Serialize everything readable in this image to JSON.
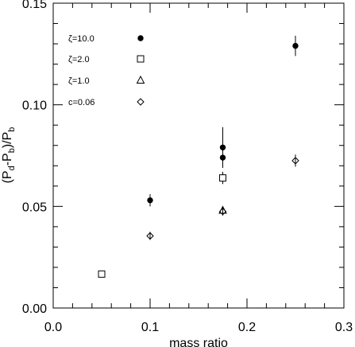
{
  "chart_data": {
    "type": "scatter",
    "xlabel": "mass ratio",
    "ylabel": "(P_d - P_b)/P_b",
    "xlim": [
      0.0,
      0.3
    ],
    "ylim": [
      0.0,
      0.15
    ],
    "x_ticks": [
      "0.0",
      "0.1",
      "0.2",
      "0.3"
    ],
    "y_ticks": [
      "0.00",
      "0.05",
      "0.10",
      "0.15"
    ],
    "grid": false,
    "legend_position": "top-left",
    "series": [
      {
        "name": "ζ=10.0",
        "marker": "filled-circle",
        "points": [
          {
            "x": 0.1,
            "y": 0.053,
            "err": 0.003
          },
          {
            "x": 0.175,
            "y": 0.079,
            "err": 0.01
          },
          {
            "x": 0.175,
            "y": 0.074,
            "err": 0.005
          },
          {
            "x": 0.25,
            "y": 0.129,
            "err": 0.005
          }
        ]
      },
      {
        "name": "ζ=2.0",
        "marker": "open-square",
        "points": [
          {
            "x": 0.05,
            "y": 0.0167,
            "err": 0
          },
          {
            "x": 0.175,
            "y": 0.064,
            "err": 0.003
          }
        ]
      },
      {
        "name": "ζ=1.0",
        "marker": "open-triangle",
        "points": [
          {
            "x": 0.175,
            "y": 0.048,
            "err": 0.002
          }
        ]
      },
      {
        "name": "c=0.06",
        "marker": "open-diamond",
        "points": [
          {
            "x": 0.1,
            "y": 0.0355,
            "err": 0.002
          },
          {
            "x": 0.175,
            "y": 0.0475,
            "err": 0.002
          },
          {
            "x": 0.25,
            "y": 0.0725,
            "err": 0.003
          }
        ]
      }
    ]
  }
}
